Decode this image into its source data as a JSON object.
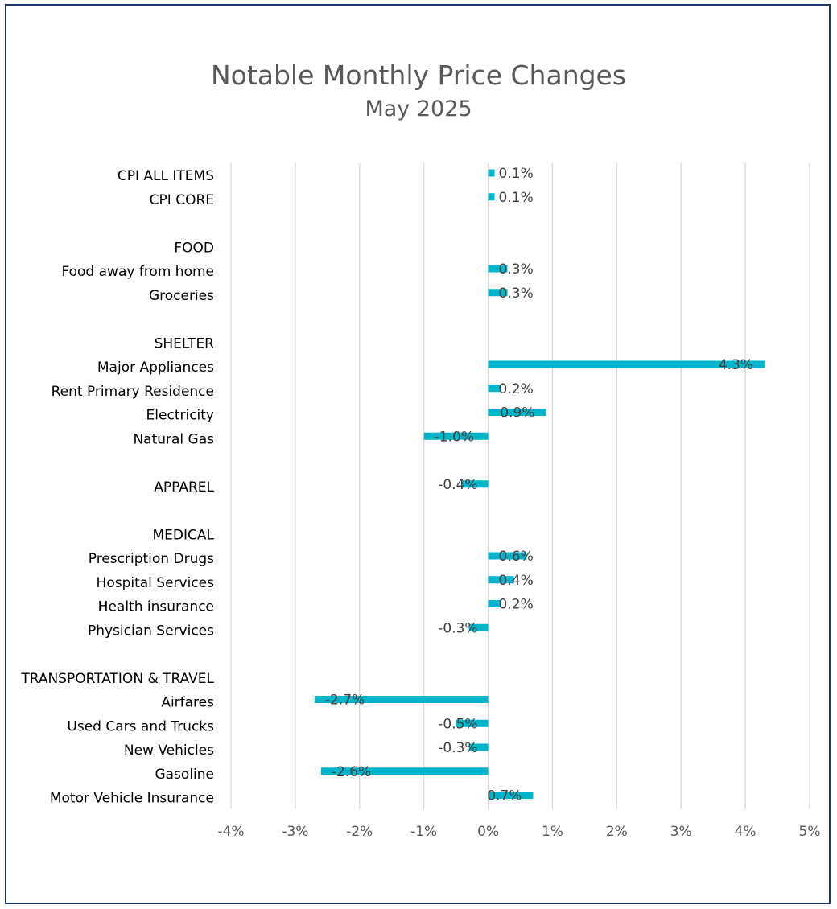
{
  "chart_data": {
    "type": "bar",
    "orientation": "horizontal",
    "title": "Notable Monthly Price Changes",
    "subtitle": "May 2025",
    "xlim": [
      -4,
      5
    ],
    "xticks": [
      -4,
      -3,
      -2,
      -1,
      0,
      1,
      2,
      3,
      4,
      5
    ],
    "xtick_labels": [
      "-4%",
      "-3%",
      "-2%",
      "-1%",
      "0%",
      "1%",
      "2%",
      "3%",
      "4%",
      "5%"
    ],
    "grid": "vertical",
    "bar_color": "#00b4cc",
    "categories": [
      "CPI ALL ITEMS",
      "CPI CORE",
      "",
      "FOOD",
      "Food away from home",
      "Groceries",
      "",
      "SHELTER",
      "Major Appliances",
      "Rent Primary Residence",
      "Electricity",
      "Natural Gas",
      "",
      "APPAREL",
      "",
      "MEDICAL",
      "Prescription Drugs",
      "Hospital Services",
      "Health insurance",
      "Physician Services",
      "",
      "TRANSPORTATION & TRAVEL",
      "Airfares",
      "Used Cars and Trucks",
      "New Vehicles",
      "Gasoline",
      "Motor Vehicle Insurance"
    ],
    "values": [
      0.1,
      0.1,
      null,
      null,
      0.3,
      0.3,
      null,
      null,
      4.3,
      0.2,
      0.9,
      -1.0,
      null,
      -0.4,
      null,
      null,
      0.6,
      0.4,
      0.2,
      -0.3,
      null,
      null,
      -2.7,
      -0.5,
      -0.3,
      -2.6,
      0.7
    ],
    "data_labels": [
      "0.1%",
      "0.1%",
      "",
      "",
      "0.3%",
      "0.3%",
      "",
      "",
      "4.3%",
      "0.2%",
      "0.9%",
      "-1.0%",
      "",
      "-0.4%",
      "",
      "",
      "0.6%",
      "0.4%",
      "0.2%",
      "-0.3%",
      "",
      "",
      "-2.7%",
      "-0.5%",
      "-0.3%",
      "-2.6%",
      "0.7%"
    ]
  }
}
